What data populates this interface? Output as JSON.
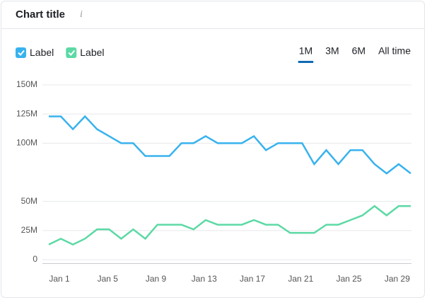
{
  "header": {
    "title": "Chart title",
    "info_icon": "i"
  },
  "tabs": {
    "items": [
      "1M",
      "3M",
      "6M",
      "All time"
    ],
    "selected": 0
  },
  "chart_data": {
    "type": "line",
    "categories": [
      "Jan 1",
      null,
      null,
      null,
      "Jan 5",
      null,
      null,
      null,
      "Jan 9",
      null,
      null,
      null,
      "Jan 13",
      null,
      null,
      null,
      "Jan 17",
      null,
      null,
      null,
      "Jan 21",
      null,
      null,
      null,
      "Jan 25",
      null,
      null,
      null,
      "Jan 29",
      null,
      null
    ],
    "series": [
      {
        "name": "Label",
        "color": "#38b2ee",
        "values": [
          123,
          123,
          112,
          123,
          112,
          106,
          100,
          100,
          89,
          89,
          89,
          100,
          100,
          106,
          100,
          100,
          100,
          106,
          94,
          100,
          100,
          100,
          82,
          94,
          82,
          94,
          94,
          82,
          74,
          82,
          74
        ]
      },
      {
        "name": "Label",
        "color": "#5cd9a5",
        "values": [
          13,
          18,
          13,
          18,
          26,
          26,
          18,
          26,
          18,
          30,
          30,
          30,
          26,
          34,
          30,
          30,
          30,
          34,
          30,
          30,
          23,
          23,
          23,
          30,
          30,
          34,
          38,
          46,
          38,
          46,
          46
        ]
      }
    ],
    "ylim": [
      0,
      150
    ],
    "yticks": [
      {
        "value": 0,
        "label": "0"
      },
      {
        "value": 25,
        "label": "25M"
      },
      {
        "value": 50,
        "label": "50M"
      },
      {
        "value": 100,
        "label": "100M"
      },
      {
        "value": 125,
        "label": "125M"
      },
      {
        "value": 150,
        "label": "150M"
      }
    ],
    "grid": true
  }
}
